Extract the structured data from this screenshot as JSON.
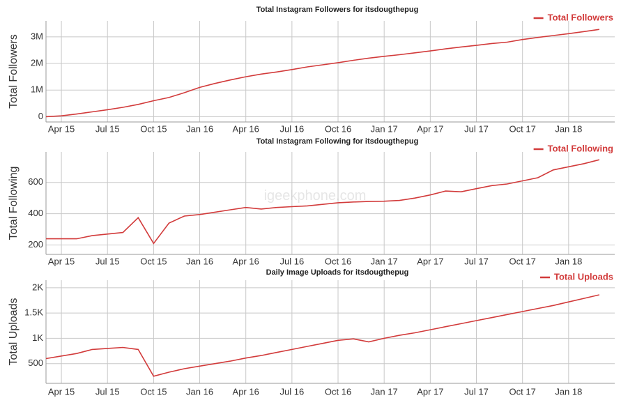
{
  "chart_data": [
    {
      "type": "line",
      "title": "Total Instagram Followers for itsdougthepug",
      "y_label": "Total Followers",
      "x": [
        "2015-03",
        "2015-04",
        "2015-05",
        "2015-06",
        "2015-07",
        "2015-08",
        "2015-09",
        "2015-10",
        "2015-11",
        "2015-12",
        "2016-01",
        "2016-02",
        "2016-03",
        "2016-04",
        "2016-05",
        "2016-06",
        "2016-07",
        "2016-08",
        "2016-09",
        "2016-10",
        "2016-11",
        "2016-12",
        "2017-01",
        "2017-02",
        "2017-03",
        "2017-04",
        "2017-05",
        "2017-06",
        "2017-07",
        "2017-08",
        "2017-09",
        "2017-10",
        "2017-11",
        "2017-12",
        "2018-01",
        "2018-02",
        "2018-03"
      ],
      "series": [
        {
          "name": "Total Followers",
          "color": "#d23b3b",
          "values": [
            0,
            30000,
            100000,
            180000,
            260000,
            350000,
            460000,
            600000,
            720000,
            900000,
            1100000,
            1250000,
            1380000,
            1500000,
            1600000,
            1680000,
            1770000,
            1870000,
            1950000,
            2030000,
            2120000,
            2200000,
            2270000,
            2330000,
            2400000,
            2470000,
            2550000,
            2620000,
            2680000,
            2750000,
            2800000,
            2900000,
            2980000,
            3050000,
            3120000,
            3200000,
            3280000
          ]
        }
      ],
      "xlim": [
        "2015-03",
        "2018-04"
      ],
      "xticks": [
        {
          "value": "2015-04",
          "label": "Apr 15"
        },
        {
          "value": "2015-07",
          "label": "Jul 15"
        },
        {
          "value": "2015-10",
          "label": "Oct 15"
        },
        {
          "value": "2016-01",
          "label": "Jan 16"
        },
        {
          "value": "2016-04",
          "label": "Apr 16"
        },
        {
          "value": "2016-07",
          "label": "Jul 16"
        },
        {
          "value": "2016-10",
          "label": "Oct 16"
        },
        {
          "value": "2017-01",
          "label": "Jan 17"
        },
        {
          "value": "2017-04",
          "label": "Apr 17"
        },
        {
          "value": "2017-07",
          "label": "Jul 17"
        },
        {
          "value": "2017-10",
          "label": "Oct 17"
        },
        {
          "value": "2018-01",
          "label": "Jan 18"
        }
      ],
      "ylim": [
        -200000,
        3600000
      ],
      "yticks": [
        0,
        {
          "value": 1000000,
          "label": "1M"
        },
        {
          "value": 2000000,
          "label": "2M"
        },
        {
          "value": 3000000,
          "label": "3M"
        }
      ],
      "grid": true,
      "legend": "upper right"
    },
    {
      "type": "line",
      "title": "Total Instagram Following for itsdougthepug",
      "y_label": "Total Following",
      "x": [
        "2015-03",
        "2015-04",
        "2015-05",
        "2015-06",
        "2015-07",
        "2015-08",
        "2015-09",
        "2015-10",
        "2015-11",
        "2015-12",
        "2016-01",
        "2016-02",
        "2016-03",
        "2016-04",
        "2016-05",
        "2016-06",
        "2016-07",
        "2016-08",
        "2016-09",
        "2016-10",
        "2016-11",
        "2016-12",
        "2017-01",
        "2017-02",
        "2017-03",
        "2017-04",
        "2017-05",
        "2017-06",
        "2017-07",
        "2017-08",
        "2017-09",
        "2017-10",
        "2017-11",
        "2017-12",
        "2018-01",
        "2018-02",
        "2018-03"
      ],
      "series": [
        {
          "name": "Total Following",
          "color": "#d23b3b",
          "values": [
            240,
            240,
            240,
            260,
            270,
            280,
            375,
            210,
            340,
            385,
            395,
            410,
            425,
            440,
            430,
            440,
            445,
            450,
            460,
            470,
            475,
            478,
            480,
            485,
            500,
            520,
            545,
            540,
            560,
            580,
            590,
            610,
            630,
            680,
            700,
            720,
            745
          ]
        }
      ],
      "xlim": [
        "2015-03",
        "2018-04"
      ],
      "xticks": [
        {
          "value": "2015-04",
          "label": "Apr 15"
        },
        {
          "value": "2015-07",
          "label": "Jul 15"
        },
        {
          "value": "2015-10",
          "label": "Oct 15"
        },
        {
          "value": "2016-01",
          "label": "Jan 16"
        },
        {
          "value": "2016-04",
          "label": "Apr 16"
        },
        {
          "value": "2016-07",
          "label": "Jul 16"
        },
        {
          "value": "2016-10",
          "label": "Oct 16"
        },
        {
          "value": "2017-01",
          "label": "Jan 17"
        },
        {
          "value": "2017-04",
          "label": "Apr 17"
        },
        {
          "value": "2017-07",
          "label": "Jul 17"
        },
        {
          "value": "2017-10",
          "label": "Oct 17"
        },
        {
          "value": "2018-01",
          "label": "Jan 18"
        }
      ],
      "ylim": [
        140,
        795
      ],
      "yticks": [
        200,
        400,
        600
      ],
      "grid": true,
      "legend": "upper right",
      "watermark": "igeekphone.com"
    },
    {
      "type": "line",
      "title": "Daily Image Uploads for itsdougthepug",
      "y_label": "Total Uploads",
      "x": [
        "2015-03",
        "2015-04",
        "2015-05",
        "2015-06",
        "2015-07",
        "2015-08",
        "2015-09",
        "2015-10",
        "2015-11",
        "2015-12",
        "2016-01",
        "2016-02",
        "2016-03",
        "2016-04",
        "2016-05",
        "2016-06",
        "2016-07",
        "2016-08",
        "2016-09",
        "2016-10",
        "2016-11",
        "2016-12",
        "2017-01",
        "2017-02",
        "2017-03",
        "2017-04",
        "2017-05",
        "2017-06",
        "2017-07",
        "2017-08",
        "2017-09",
        "2017-10",
        "2017-11",
        "2017-12",
        "2018-01",
        "2018-02",
        "2018-03"
      ],
      "series": [
        {
          "name": "Total Uploads",
          "color": "#d23b3b",
          "values": [
            600,
            650,
            700,
            780,
            800,
            820,
            780,
            250,
            330,
            400,
            450,
            500,
            550,
            610,
            660,
            720,
            780,
            840,
            900,
            960,
            990,
            930,
            1000,
            1060,
            1110,
            1170,
            1230,
            1290,
            1350,
            1410,
            1470,
            1530,
            1590,
            1650,
            1720,
            1790,
            1860
          ]
        }
      ],
      "xlim": [
        "2015-03",
        "2018-04"
      ],
      "xticks": [
        {
          "value": "2015-04",
          "label": "Apr 15"
        },
        {
          "value": "2015-07",
          "label": "Jul 15"
        },
        {
          "value": "2015-10",
          "label": "Oct 15"
        },
        {
          "value": "2016-01",
          "label": "Jan 16"
        },
        {
          "value": "2016-04",
          "label": "Apr 16"
        },
        {
          "value": "2016-07",
          "label": "Jul 16"
        },
        {
          "value": "2016-10",
          "label": "Oct 16"
        },
        {
          "value": "2017-01",
          "label": "Jan 17"
        },
        {
          "value": "2017-04",
          "label": "Apr 17"
        },
        {
          "value": "2017-07",
          "label": "Jul 17"
        },
        {
          "value": "2017-10",
          "label": "Oct 17"
        },
        {
          "value": "2018-01",
          "label": "Jan 18"
        }
      ],
      "ylim": [
        110,
        2150
      ],
      "yticks": [
        500,
        {
          "value": 1000,
          "label": "1K"
        },
        {
          "value": 1500,
          "label": "1.5K"
        },
        {
          "value": 2000,
          "label": "2K"
        }
      ],
      "grid": true,
      "legend": "upper right"
    }
  ]
}
